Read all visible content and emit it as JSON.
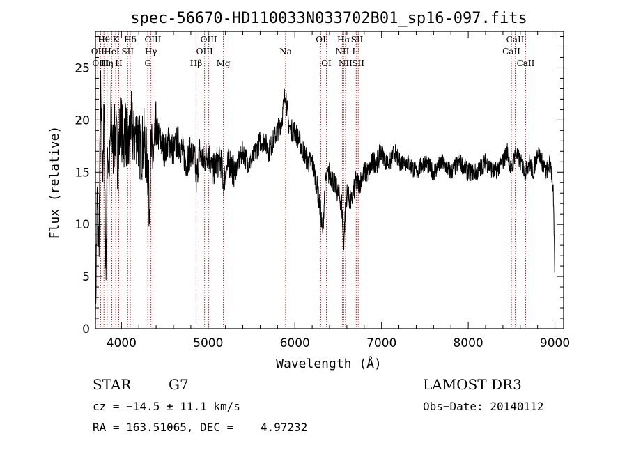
{
  "chart_data": {
    "type": "line",
    "title": "spec-56670-HD110033N033702B01_sp16-097.fits",
    "xlabel": "Wavelength (Å)",
    "ylabel": "Flux (relative)",
    "xlim": [
      3700,
      9100
    ],
    "ylim": [
      0,
      28.5
    ],
    "x_ticks": [
      4000,
      5000,
      6000,
      7000,
      8000,
      9000
    ],
    "y_ticks": [
      0,
      5,
      10,
      15,
      20,
      25
    ],
    "series_color": "#000000",
    "line_color": "#b22222",
    "spectrum": {
      "x": [
        3700,
        3720,
        3740,
        3760,
        3780,
        3800,
        3820,
        3840,
        3860,
        3880,
        3900,
        3930,
        3960,
        3990,
        4020,
        4050,
        4080,
        4110,
        4140,
        4180,
        4220,
        4260,
        4300,
        4320,
        4340,
        4370,
        4400,
        4450,
        4500,
        4550,
        4600,
        4650,
        4700,
        4750,
        4800,
        4850,
        4861,
        4900,
        4950,
        5000,
        5050,
        5100,
        5150,
        5175,
        5200,
        5250,
        5300,
        5350,
        5400,
        5450,
        5500,
        5550,
        5600,
        5650,
        5700,
        5750,
        5800,
        5850,
        5893,
        5920,
        5950,
        6000,
        6050,
        6100,
        6150,
        6200,
        6250,
        6300,
        6320,
        6350,
        6400,
        6450,
        6500,
        6540,
        6563,
        6580,
        6600,
        6650,
        6700,
        6750,
        6800,
        6850,
        6900,
        6950,
        7000,
        7050,
        7100,
        7150,
        7200,
        7300,
        7400,
        7500,
        7600,
        7700,
        7800,
        7900,
        8000,
        8100,
        8200,
        8300,
        8400,
        8450,
        8498,
        8542,
        8600,
        8662,
        8700,
        8750,
        8800,
        8850,
        8900,
        8950,
        8980,
        9000
      ],
      "y": [
        1,
        12,
        8,
        22,
        15,
        20,
        6,
        18,
        14,
        21,
        17,
        19,
        16,
        20,
        18,
        19,
        17,
        20,
        18,
        19,
        17,
        18,
        16,
        12,
        17,
        16,
        19,
        18,
        17,
        18,
        17,
        18,
        17,
        16,
        17,
        16,
        14,
        17,
        16,
        17,
        15,
        16,
        16,
        14,
        15,
        16,
        15,
        16,
        17,
        16,
        16,
        17,
        18,
        18,
        17,
        18,
        19,
        20,
        23,
        20,
        19,
        19,
        18,
        17,
        16,
        16,
        14,
        11,
        9,
        14,
        15,
        14,
        13,
        12,
        8,
        11,
        13,
        12,
        14,
        14,
        15,
        15,
        16,
        16,
        17,
        16,
        16,
        17,
        16,
        16,
        15,
        16,
        15,
        16,
        15,
        16,
        15,
        15,
        16,
        15,
        16,
        17,
        15,
        17,
        16,
        15,
        16,
        15,
        17,
        16,
        15,
        16,
        13,
        5
      ]
    },
    "lines": [
      {
        "label": "Hθ",
        "x": 3798,
        "row": 0
      },
      {
        "label": "OII",
        "x": 3727,
        "row": 1
      },
      {
        "label": "OIII",
        "x": 3760,
        "row": 2
      },
      {
        "label": "K",
        "x": 3934,
        "row": 0
      },
      {
        "label": "HeI",
        "x": 3889,
        "row": 1
      },
      {
        "label": "Hη",
        "x": 3835,
        "row": 2
      },
      {
        "label": "SII",
        "x": 4072,
        "row": 1
      },
      {
        "label": "H",
        "x": 3969,
        "row": 2
      },
      {
        "label": "Hδ",
        "x": 4102,
        "row": 0
      },
      {
        "label": "OIII",
        "x": 4363,
        "row": 0
      },
      {
        "label": "Hγ",
        "x": 4340,
        "row": 1
      },
      {
        "label": "G",
        "x": 4304,
        "row": 2
      },
      {
        "label": "Hβ",
        "x": 4861,
        "row": 2
      },
      {
        "label": "OIII",
        "x": 5007,
        "row": 0
      },
      {
        "label": "OIII",
        "x": 4959,
        "row": 1
      },
      {
        "label": "Mg",
        "x": 5175,
        "row": 2
      },
      {
        "label": "Na",
        "x": 5893,
        "row": 1
      },
      {
        "label": "OI",
        "x": 6300,
        "row": 0
      },
      {
        "label": "OI",
        "x": 6364,
        "row": 2
      },
      {
        "label": "Hα",
        "x": 6563,
        "row": 0
      },
      {
        "label": "NII",
        "x": 6548,
        "row": 1
      },
      {
        "label": "NII",
        "x": 6584,
        "row": 2
      },
      {
        "label": "SII",
        "x": 6717,
        "row": 0
      },
      {
        "label": "Li",
        "x": 6708,
        "row": 1
      },
      {
        "label": "SII",
        "x": 6731,
        "row": 2
      },
      {
        "label": "CaII",
        "x": 8542,
        "row": 0
      },
      {
        "label": "CaII",
        "x": 8498,
        "row": 1
      },
      {
        "label": "CaII",
        "x": 8662,
        "row": 2
      }
    ]
  },
  "info": {
    "object_class": "STAR",
    "subclass": "G7",
    "survey": "LAMOST DR3",
    "cz": "cz = −14.5 ± 11.1 km/s",
    "obs_date": "Obs−Date: 20140112",
    "coords": "RA = 163.51065, DEC =    4.97232"
  }
}
